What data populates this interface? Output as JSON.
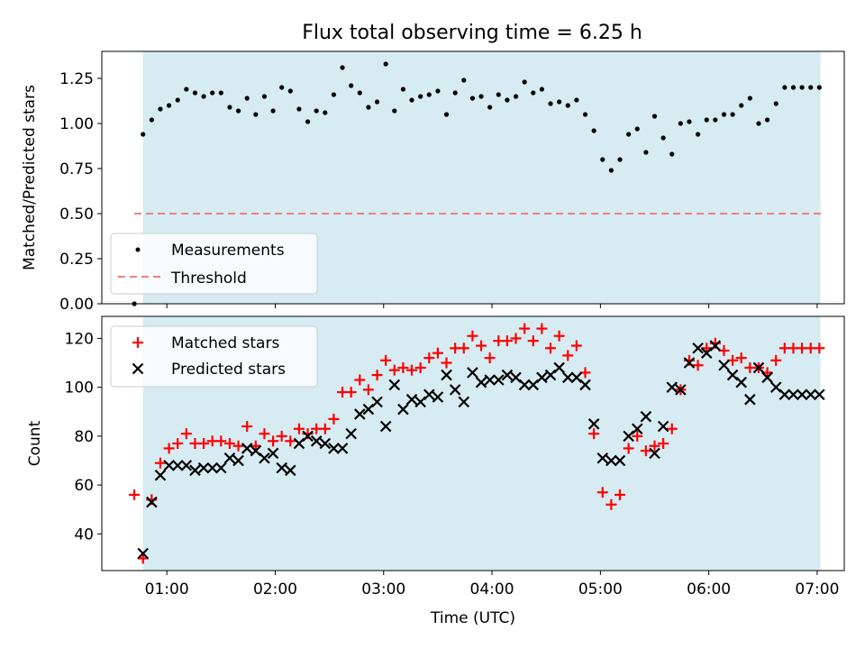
{
  "title": "Flux total observing time = 6.25 h",
  "colors": {
    "shade": "#add8e6",
    "threshold": "#f08080",
    "matched": "#ff0000",
    "predicted": "#000000",
    "measurement": "#000000"
  },
  "chart_data": [
    {
      "type": "scatter",
      "panel": "top",
      "ylabel": "Matched/Predicted stars",
      "xlim": [
        0.4,
        7.25
      ],
      "ylim": [
        0.0,
        1.4
      ],
      "yticks": [
        0.0,
        0.25,
        0.5,
        0.75,
        1.0,
        1.25
      ],
      "ytick_labels": [
        "0.00",
        "0.25",
        "0.50",
        "0.75",
        "1.00",
        "1.25"
      ],
      "shaded_span": [
        0.78,
        7.03
      ],
      "legend": {
        "position": "lower-left",
        "entries": [
          "Measurements",
          "Threshold"
        ]
      },
      "threshold": {
        "name": "Threshold",
        "xrange": [
          0.7,
          7.05
        ],
        "y": 0.5
      },
      "series": [
        {
          "name": "Measurements",
          "x": [
            0.7,
            0.78,
            0.86,
            0.94,
            1.02,
            1.1,
            1.18,
            1.26,
            1.34,
            1.42,
            1.5,
            1.58,
            1.66,
            1.74,
            1.82,
            1.9,
            1.98,
            2.06,
            2.14,
            2.22,
            2.3,
            2.38,
            2.46,
            2.54,
            2.62,
            2.7,
            2.78,
            2.86,
            2.94,
            3.02,
            3.1,
            3.18,
            3.26,
            3.34,
            3.42,
            3.5,
            3.58,
            3.66,
            3.74,
            3.82,
            3.9,
            3.98,
            4.06,
            4.14,
            4.22,
            4.3,
            4.38,
            4.46,
            4.54,
            4.62,
            4.7,
            4.78,
            4.86,
            4.94,
            5.02,
            5.1,
            5.18,
            5.26,
            5.34,
            5.42,
            5.5,
            5.58,
            5.66,
            5.74,
            5.82,
            5.9,
            5.98,
            6.06,
            6.14,
            6.22,
            6.3,
            6.38,
            6.46,
            6.54,
            6.62,
            6.7,
            6.78,
            6.86,
            6.94,
            7.02
          ],
          "y": [
            0.0,
            0.94,
            1.02,
            1.08,
            1.1,
            1.13,
            1.19,
            1.17,
            1.15,
            1.17,
            1.17,
            1.09,
            1.07,
            1.14,
            1.05,
            1.15,
            1.07,
            1.2,
            1.18,
            1.08,
            1.01,
            1.07,
            1.06,
            1.16,
            1.31,
            1.21,
            1.17,
            1.09,
            1.12,
            1.33,
            1.07,
            1.19,
            1.13,
            1.15,
            1.16,
            1.18,
            1.05,
            1.17,
            1.24,
            1.14,
            1.15,
            1.09,
            1.16,
            1.13,
            1.15,
            1.23,
            1.17,
            1.19,
            1.11,
            1.12,
            1.1,
            1.13,
            1.05,
            0.96,
            0.8,
            0.74,
            0.8,
            0.94,
            0.97,
            0.84,
            1.04,
            0.92,
            0.83,
            1.0,
            1.01,
            0.94,
            1.02,
            1.02,
            1.05,
            1.05,
            1.1,
            1.14,
            1.0,
            1.02,
            1.11,
            1.2,
            1.2,
            1.2,
            1.2,
            1.2
          ]
        }
      ]
    },
    {
      "type": "scatter",
      "panel": "bottom",
      "title": "",
      "xlabel": "Time (UTC)",
      "ylabel": "Count",
      "xlim": [
        0.4,
        7.25
      ],
      "ylim": [
        25,
        129
      ],
      "yticks": [
        40,
        60,
        80,
        100,
        120
      ],
      "ytick_labels": [
        "40",
        "60",
        "80",
        "100",
        "120"
      ],
      "xticks": [
        1,
        2,
        3,
        4,
        5,
        6,
        7
      ],
      "xtick_labels": [
        "01:00",
        "02:00",
        "03:00",
        "04:00",
        "05:00",
        "06:00",
        "07:00"
      ],
      "shaded_span": [
        0.78,
        7.03
      ],
      "legend": {
        "position": "top-left",
        "entries": [
          "Matched stars",
          "Predicted stars"
        ]
      },
      "series": [
        {
          "name": "Matched stars",
          "marker": "plus",
          "x": [
            0.7,
            0.78,
            0.86,
            0.94,
            1.02,
            1.1,
            1.18,
            1.26,
            1.34,
            1.42,
            1.5,
            1.58,
            1.66,
            1.74,
            1.82,
            1.9,
            1.98,
            2.06,
            2.14,
            2.22,
            2.3,
            2.38,
            2.46,
            2.54,
            2.62,
            2.7,
            2.78,
            2.86,
            2.94,
            3.02,
            3.1,
            3.18,
            3.26,
            3.34,
            3.42,
            3.5,
            3.58,
            3.66,
            3.74,
            3.82,
            3.9,
            3.98,
            4.06,
            4.14,
            4.22,
            4.3,
            4.38,
            4.46,
            4.54,
            4.62,
            4.7,
            4.78,
            4.86,
            4.94,
            5.02,
            5.1,
            5.18,
            5.26,
            5.34,
            5.42,
            5.5,
            5.58,
            5.66,
            5.74,
            5.82,
            5.9,
            5.98,
            6.06,
            6.14,
            6.22,
            6.3,
            6.38,
            6.46,
            6.54,
            6.62,
            6.7,
            6.78,
            6.86,
            6.94,
            7.02
          ],
          "y": [
            56,
            30,
            54,
            69,
            75,
            77,
            81,
            77,
            77,
            78,
            78,
            77,
            76,
            84,
            76,
            81,
            78,
            80,
            78,
            83,
            81,
            83,
            83,
            87,
            98,
            98,
            103,
            99,
            105,
            111,
            107,
            108,
            107,
            108,
            112,
            114,
            110,
            116,
            116,
            121,
            117,
            112,
            119,
            119,
            120,
            124,
            119,
            124,
            116,
            121,
            113,
            117,
            106,
            81,
            57,
            52,
            56,
            75,
            80,
            74,
            76,
            77,
            83,
            99,
            111,
            109,
            116,
            118,
            115,
            111,
            112,
            108,
            108,
            106,
            111,
            116,
            116,
            116,
            116,
            116
          ]
        },
        {
          "name": "Predicted stars",
          "marker": "x",
          "x": [
            0.78,
            0.86,
            0.94,
            1.02,
            1.1,
            1.18,
            1.26,
            1.34,
            1.42,
            1.5,
            1.58,
            1.66,
            1.74,
            1.82,
            1.9,
            1.98,
            2.06,
            2.14,
            2.22,
            2.3,
            2.38,
            2.46,
            2.54,
            2.62,
            2.7,
            2.78,
            2.86,
            2.94,
            3.02,
            3.1,
            3.18,
            3.26,
            3.34,
            3.42,
            3.5,
            3.58,
            3.66,
            3.74,
            3.82,
            3.9,
            3.98,
            4.06,
            4.14,
            4.22,
            4.3,
            4.38,
            4.46,
            4.54,
            4.62,
            4.7,
            4.78,
            4.86,
            4.94,
            5.02,
            5.1,
            5.18,
            5.26,
            5.34,
            5.42,
            5.5,
            5.58,
            5.66,
            5.74,
            5.82,
            5.9,
            5.98,
            6.06,
            6.14,
            6.22,
            6.3,
            6.38,
            6.46,
            6.54,
            6.62,
            6.7,
            6.78,
            6.86,
            6.94,
            7.02
          ],
          "y": [
            32,
            53,
            64,
            68,
            68,
            68,
            66,
            67,
            67,
            67,
            71,
            70,
            75,
            74,
            71,
            73,
            67,
            66,
            77,
            80,
            78,
            77,
            75,
            75,
            81,
            89,
            91,
            94,
            84,
            101,
            91,
            95,
            94,
            97,
            96,
            105,
            99,
            94,
            106,
            102,
            103,
            103,
            105,
            104,
            101,
            101,
            104,
            105,
            108,
            104,
            104,
            101,
            85,
            71,
            70,
            70,
            80,
            83,
            88,
            73,
            84,
            100,
            99,
            110,
            116,
            114,
            117,
            109,
            105,
            102,
            95,
            108,
            104,
            100,
            97,
            97,
            97,
            97,
            97
          ]
        }
      ]
    }
  ]
}
